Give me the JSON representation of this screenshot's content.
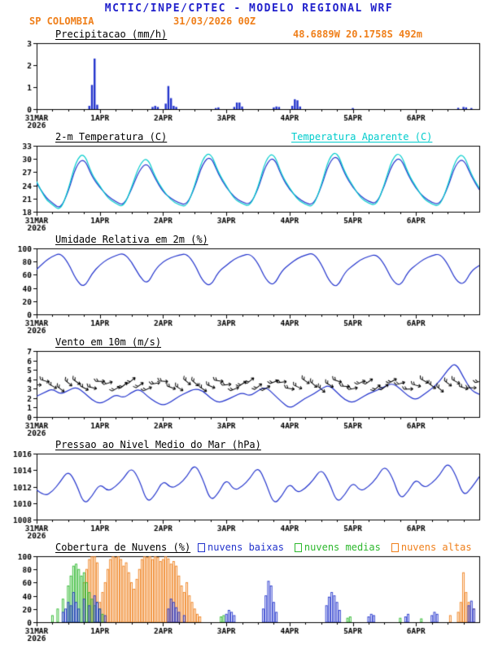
{
  "header": {
    "title": "MCTIC/INPE/CPTEC - MODELO REGIONAL WRF",
    "station": "SP COLOMBIA",
    "run": "31/03/2026 00Z",
    "coords": "48.6889W 20.1758S 492m"
  },
  "colors": {
    "header_blue": "#2222cc",
    "orange": "#ef7f1a",
    "line_blue": "#2233cc",
    "cyan": "#00cccc",
    "green": "#2db82d",
    "axis": "#000000"
  },
  "axis": {
    "hours_total": 168,
    "day_ticks": [
      {
        "hour": 0,
        "label": "31MAR",
        "sublabel": "2026"
      },
      {
        "hour": 24,
        "label": "1APR"
      },
      {
        "hour": 48,
        "label": "2APR"
      },
      {
        "hour": 72,
        "label": "3APR"
      },
      {
        "hour": 96,
        "label": "4APR"
      },
      {
        "hour": 120,
        "label": "5APR"
      },
      {
        "hour": 144,
        "label": "6APR"
      }
    ]
  },
  "chart_data": [
    {
      "id": "precipitation",
      "type": "bar",
      "title": "Precipitacao (mm/h)",
      "ylim": [
        0,
        3
      ],
      "yticks": [
        0,
        1,
        2,
        3
      ],
      "color": "#2233cc",
      "bars": [
        [
          20,
          0.15
        ],
        [
          21,
          1.1
        ],
        [
          22,
          2.3
        ],
        [
          23,
          0.2
        ],
        [
          44,
          0.1
        ],
        [
          45,
          0.15
        ],
        [
          46,
          0.1
        ],
        [
          49,
          0.25
        ],
        [
          50,
          1.05
        ],
        [
          51,
          0.5
        ],
        [
          52,
          0.15
        ],
        [
          53,
          0.1
        ],
        [
          68,
          0.05
        ],
        [
          69,
          0.08
        ],
        [
          75,
          0.1
        ],
        [
          76,
          0.3
        ],
        [
          77,
          0.3
        ],
        [
          78,
          0.12
        ],
        [
          90,
          0.08
        ],
        [
          91,
          0.12
        ],
        [
          92,
          0.1
        ],
        [
          97,
          0.15
        ],
        [
          98,
          0.45
        ],
        [
          99,
          0.4
        ],
        [
          100,
          0.12
        ],
        [
          120,
          0.05
        ],
        [
          160,
          0.06
        ],
        [
          162,
          0.1
        ],
        [
          163,
          0.08
        ],
        [
          165,
          0.05
        ]
      ]
    },
    {
      "id": "temperature",
      "type": "line",
      "title": "2-m Temperatura (C)",
      "title2": "Temperatura Aparente (C)",
      "ylim": [
        18,
        33
      ],
      "yticks": [
        18,
        21,
        24,
        27,
        30,
        33
      ],
      "step_hours": 3,
      "series": [
        {
          "name": "2-m Temperatura (C)",
          "color": "#2233cc",
          "values": [
            24.5,
            21.5,
            20.0,
            18.6,
            22.5,
            28.5,
            30.3,
            26.0,
            23.5,
            21.5,
            20.3,
            19.4,
            23.0,
            27.5,
            29.3,
            25.5,
            22.5,
            21.0,
            20.0,
            19.5,
            23.5,
            29.0,
            30.8,
            26.5,
            23.5,
            21.3,
            20.2,
            19.6,
            23.0,
            28.8,
            30.6,
            26.0,
            23.0,
            21.2,
            20.0,
            19.5,
            23.5,
            29.2,
            31.0,
            26.5,
            23.5,
            21.5,
            20.3,
            19.8,
            23.8,
            29.0,
            30.5,
            26.3,
            23.2,
            21.3,
            20.1,
            19.6,
            23.4,
            28.8,
            30.2,
            26.0,
            23.0
          ]
        },
        {
          "name": "Temperatura Aparente (C)",
          "color": "#00cccc",
          "values": [
            24.9,
            21.1,
            19.6,
            18.2,
            22.9,
            29.7,
            31.5,
            26.4,
            23.9,
            21.1,
            19.9,
            19.0,
            23.4,
            28.7,
            30.5,
            25.9,
            22.9,
            20.6,
            19.6,
            19.1,
            23.9,
            30.2,
            31.6,
            26.9,
            23.9,
            20.9,
            19.8,
            19.2,
            23.4,
            30.0,
            31.5,
            26.4,
            23.4,
            20.8,
            19.6,
            19.1,
            23.9,
            30.4,
            31.8,
            26.9,
            23.9,
            21.1,
            19.9,
            19.4,
            24.2,
            30.2,
            31.6,
            26.7,
            23.6,
            20.9,
            19.7,
            19.2,
            23.8,
            30.0,
            31.3,
            26.4,
            23.4
          ]
        }
      ]
    },
    {
      "id": "humidity",
      "type": "line",
      "title": "Umidade Relativa em 2m (%)",
      "ylim": [
        0,
        100
      ],
      "yticks": [
        0,
        20,
        40,
        60,
        80,
        100
      ],
      "step_hours": 3,
      "series": [
        {
          "name": "Umidade Relativa em 2m (%)",
          "color": "#2233cc",
          "values": [
            68,
            80,
            88,
            93,
            78,
            52,
            40,
            62,
            75,
            84,
            89,
            93,
            80,
            58,
            45,
            68,
            80,
            86,
            90,
            92,
            76,
            50,
            42,
            65,
            74,
            84,
            89,
            92,
            78,
            52,
            43,
            66,
            76,
            85,
            90,
            93,
            77,
            50,
            40,
            64,
            74,
            83,
            88,
            91,
            76,
            51,
            42,
            65,
            75,
            84,
            89,
            92,
            77,
            52,
            44,
            66,
            74
          ]
        }
      ]
    },
    {
      "id": "wind",
      "type": "line",
      "title": "Vento em 10m (m/s)",
      "ylim": [
        0,
        7
      ],
      "yticks": [
        0,
        1,
        2,
        3,
        4,
        5,
        6,
        7
      ],
      "step_hours": 3,
      "series": [
        {
          "name": "Vento em 10m (m/s)",
          "color": "#2233cc",
          "values": [
            2.2,
            2.6,
            3.0,
            2.4,
            2.8,
            3.2,
            2.6,
            1.8,
            1.4,
            1.8,
            2.4,
            2.0,
            2.6,
            3.0,
            2.2,
            1.6,
            1.2,
            1.6,
            2.2,
            2.6,
            3.0,
            2.8,
            2.0,
            1.5,
            1.8,
            2.2,
            2.6,
            2.2,
            2.8,
            3.2,
            2.4,
            1.6,
            0.9,
            1.4,
            2.0,
            2.4,
            3.0,
            3.4,
            2.6,
            1.8,
            1.5,
            2.0,
            2.5,
            2.8,
            3.2,
            3.6,
            3.0,
            2.2,
            1.8,
            2.4,
            3.0,
            3.8,
            5.0,
            5.8,
            4.2,
            2.8,
            2.4
          ]
        }
      ],
      "barbs": {
        "color": "#000000",
        "base_y": 3.4,
        "wiggle": 0.45,
        "dirs": [
          90,
          106,
          119,
          127,
          130,
          126,
          117,
          103,
          88,
          72,
          60,
          52,
          50,
          55,
          65,
          79,
          95,
          110,
          122,
          129,
          130,
          124,
          113,
          99,
          83,
          68,
          57,
          51,
          51,
          58,
          69,
          83,
          99,
          114,
          124,
          130,
          129,
          121,
          109,
          93,
          78,
          65,
          55,
          50,
          52,
          60,
          73,
          88,
          104,
          118,
          127,
          130,
          127,
          119,
          107,
          90,
          74
        ]
      }
    },
    {
      "id": "pressure",
      "type": "line",
      "title": "Pressao ao Nivel Medio do Mar (hPa)",
      "ylim": [
        1008,
        1016
      ],
      "yticks": [
        1008,
        1010,
        1012,
        1014,
        1016
      ],
      "step_hours": 3,
      "series": [
        {
          "name": "Pressao ao Nivel Medio do Mar (hPa)",
          "color": "#2233cc",
          "values": [
            1011.6,
            1010.8,
            1011.4,
            1012.6,
            1014.0,
            1012.4,
            1009.8,
            1010.8,
            1012.4,
            1011.4,
            1012.0,
            1013.0,
            1014.4,
            1012.8,
            1010.0,
            1011.0,
            1012.8,
            1011.8,
            1012.2,
            1013.2,
            1014.8,
            1013.0,
            1010.2,
            1011.2,
            1013.0,
            1011.5,
            1012.0,
            1013.0,
            1014.5,
            1012.5,
            1009.8,
            1010.8,
            1012.5,
            1011.2,
            1011.8,
            1012.8,
            1014.2,
            1012.6,
            1010.0,
            1011.0,
            1012.6,
            1011.4,
            1012.0,
            1013.0,
            1014.6,
            1013.2,
            1010.4,
            1011.4,
            1013.0,
            1011.8,
            1012.4,
            1013.4,
            1015.0,
            1013.5,
            1010.8,
            1011.8,
            1013.2
          ]
        }
      ]
    },
    {
      "id": "clouds",
      "type": "bar",
      "title": "Cobertura de Nuvens (%)",
      "ylim": [
        0,
        100
      ],
      "yticks": [
        0,
        20,
        40,
        60,
        80,
        100
      ],
      "legend": [
        {
          "label": "nuvens baixas",
          "color": "#2233cc"
        },
        {
          "label": "nuvens medias",
          "color": "#2db82d"
        },
        {
          "label": "nuvens altas",
          "color": "#ef7f1a"
        }
      ],
      "bar_series": [
        {
          "name": "nuvens altas",
          "color": "#ef7f1a",
          "points": [
            [
              18,
              60
            ],
            [
              19,
              80
            ],
            [
              20,
              95
            ],
            [
              21,
              100
            ],
            [
              22,
              100
            ],
            [
              23,
              90
            ],
            [
              24,
              30
            ],
            [
              25,
              45
            ],
            [
              26,
              60
            ],
            [
              27,
              80
            ],
            [
              28,
              95
            ],
            [
              29,
              100
            ],
            [
              30,
              98
            ],
            [
              31,
              100
            ],
            [
              32,
              95
            ],
            [
              33,
              85
            ],
            [
              34,
              90
            ],
            [
              35,
              75
            ],
            [
              36,
              60
            ],
            [
              37,
              50
            ],
            [
              38,
              65
            ],
            [
              39,
              80
            ],
            [
              40,
              95
            ],
            [
              41,
              100
            ],
            [
              42,
              98
            ],
            [
              43,
              100
            ],
            [
              44,
              95
            ],
            [
              45,
              100
            ],
            [
              46,
              98
            ],
            [
              47,
              92
            ],
            [
              48,
              95
            ],
            [
              49,
              100
            ],
            [
              50,
              96
            ],
            [
              51,
              88
            ],
            [
              52,
              92
            ],
            [
              53,
              85
            ],
            [
              54,
              70
            ],
            [
              55,
              55
            ],
            [
              56,
              45
            ],
            [
              57,
              60
            ],
            [
              58,
              40
            ],
            [
              59,
              30
            ],
            [
              60,
              20
            ],
            [
              61,
              12
            ],
            [
              62,
              8
            ],
            [
              157,
              10
            ],
            [
              160,
              15
            ],
            [
              161,
              30
            ],
            [
              162,
              75
            ],
            [
              163,
              45
            ],
            [
              164,
              30
            ],
            [
              166,
              20
            ]
          ]
        },
        {
          "name": "nuvens medias",
          "color": "#2db82d",
          "points": [
            [
              6,
              10
            ],
            [
              8,
              20
            ],
            [
              10,
              35
            ],
            [
              12,
              55
            ],
            [
              13,
              70
            ],
            [
              14,
              85
            ],
            [
              15,
              88
            ],
            [
              16,
              80
            ],
            [
              17,
              70
            ],
            [
              18,
              75
            ],
            [
              19,
              60
            ],
            [
              20,
              45
            ],
            [
              21,
              35
            ],
            [
              22,
              25
            ],
            [
              23,
              30
            ],
            [
              24,
              20
            ],
            [
              25,
              12
            ],
            [
              70,
              8
            ],
            [
              71,
              10
            ],
            [
              118,
              6
            ],
            [
              119,
              8
            ],
            [
              138,
              6
            ],
            [
              146,
              5
            ]
          ]
        },
        {
          "name": "nuvens baixas",
          "color": "#2233cc",
          "points": [
            [
              10,
              15
            ],
            [
              11,
              20
            ],
            [
              12,
              30
            ],
            [
              13,
              25
            ],
            [
              14,
              45
            ],
            [
              15,
              30
            ],
            [
              16,
              20
            ],
            [
              18,
              35
            ],
            [
              20,
              25
            ],
            [
              22,
              40
            ],
            [
              23,
              30
            ],
            [
              24,
              20
            ],
            [
              26,
              10
            ],
            [
              50,
              20
            ],
            [
              51,
              35
            ],
            [
              52,
              30
            ],
            [
              53,
              22
            ],
            [
              54,
              15
            ],
            [
              56,
              10
            ],
            [
              72,
              12
            ],
            [
              73,
              18
            ],
            [
              74,
              15
            ],
            [
              75,
              10
            ],
            [
              86,
              20
            ],
            [
              87,
              40
            ],
            [
              88,
              62
            ],
            [
              89,
              55
            ],
            [
              90,
              30
            ],
            [
              91,
              15
            ],
            [
              110,
              25
            ],
            [
              111,
              38
            ],
            [
              112,
              45
            ],
            [
              113,
              40
            ],
            [
              114,
              30
            ],
            [
              115,
              18
            ],
            [
              126,
              8
            ],
            [
              127,
              12
            ],
            [
              128,
              10
            ],
            [
              140,
              8
            ],
            [
              141,
              12
            ],
            [
              150,
              10
            ],
            [
              151,
              15
            ],
            [
              152,
              12
            ],
            [
              164,
              25
            ],
            [
              165,
              32
            ],
            [
              166,
              20
            ]
          ]
        }
      ]
    }
  ]
}
